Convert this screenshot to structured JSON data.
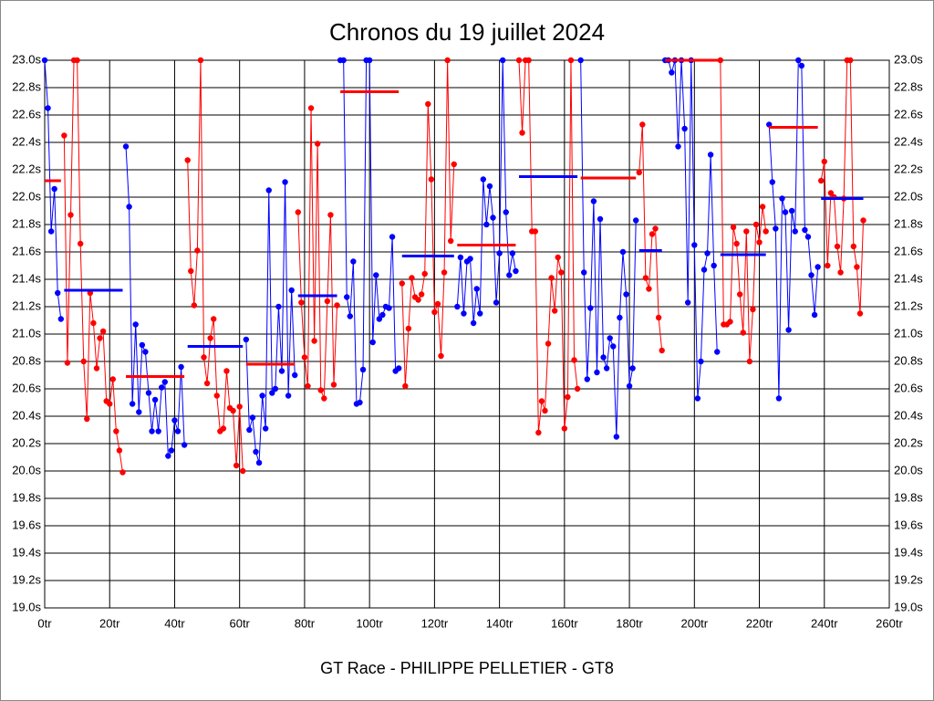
{
  "chart_data": {
    "type": "line",
    "title": "Chronos du 19 juillet 2024",
    "xlabel": "GT Race - PHILIPPE PELLETIER - GT8",
    "grid": true,
    "xlim": [
      0,
      260
    ],
    "ylim": [
      19.0,
      23.0
    ],
    "xticks": [
      {
        "value": 0,
        "label": "0tr"
      },
      {
        "value": 20,
        "label": "20tr"
      },
      {
        "value": 40,
        "label": "40tr"
      },
      {
        "value": 60,
        "label": "60tr"
      },
      {
        "value": 80,
        "label": "80tr"
      },
      {
        "value": 100,
        "label": "100tr"
      },
      {
        "value": 120,
        "label": "120tr"
      },
      {
        "value": 140,
        "label": "140tr"
      },
      {
        "value": 160,
        "label": "160tr"
      },
      {
        "value": 180,
        "label": "180tr"
      },
      {
        "value": 200,
        "label": "200tr"
      },
      {
        "value": 220,
        "label": "220tr"
      },
      {
        "value": 240,
        "label": "240tr"
      },
      {
        "value": 260,
        "label": "260tr"
      }
    ],
    "yticks": [
      {
        "value": 19.0,
        "label": "19.0s"
      },
      {
        "value": 19.2,
        "label": "19.2s"
      },
      {
        "value": 19.4,
        "label": "19.4s"
      },
      {
        "value": 19.6,
        "label": "19.6s"
      },
      {
        "value": 19.8,
        "label": "19.8s"
      },
      {
        "value": 20.0,
        "label": "20.0s"
      },
      {
        "value": 20.2,
        "label": "20.2s"
      },
      {
        "value": 20.4,
        "label": "20.4s"
      },
      {
        "value": 20.6,
        "label": "20.6s"
      },
      {
        "value": 20.8,
        "label": "20.8s"
      },
      {
        "value": 21.0,
        "label": "21.0s"
      },
      {
        "value": 21.2,
        "label": "21.2s"
      },
      {
        "value": 21.4,
        "label": "21.4s"
      },
      {
        "value": 21.6,
        "label": "21.6s"
      },
      {
        "value": 21.8,
        "label": "21.8s"
      },
      {
        "value": 22.0,
        "label": "22.0s"
      },
      {
        "value": 22.2,
        "label": "22.2s"
      },
      {
        "value": 22.4,
        "label": "22.4s"
      },
      {
        "value": 22.6,
        "label": "22.6s"
      },
      {
        "value": 22.8,
        "label": "22.8s"
      },
      {
        "value": 23.0,
        "label": "23.0s"
      }
    ],
    "series": [
      {
        "color": "#0000ff",
        "x": [
          0,
          1,
          2,
          3,
          4,
          5
        ],
        "values": [
          23.0,
          22.65,
          21.75,
          22.06,
          21.3,
          21.11
        ]
      },
      {
        "color": "#ff0000",
        "x": [
          6,
          7,
          8,
          9,
          10,
          11,
          12,
          13,
          14,
          15,
          16,
          17,
          18,
          19,
          20,
          21,
          22,
          23,
          24
        ],
        "values": [
          22.45,
          20.79,
          21.87,
          23.0,
          23.0,
          21.66,
          20.8,
          20.38,
          21.3,
          21.08,
          20.75,
          20.97,
          21.02,
          20.51,
          20.49,
          20.67,
          20.29,
          20.15,
          19.99
        ]
      },
      {
        "color": "#0000ff",
        "x": [
          25,
          26,
          27,
          28,
          29,
          30,
          31,
          32,
          33,
          34,
          35,
          36,
          37,
          38,
          39,
          40,
          41,
          42,
          43
        ],
        "values": [
          22.37,
          21.93,
          20.49,
          21.07,
          20.43,
          20.92,
          20.87,
          20.57,
          20.29,
          20.52,
          20.29,
          20.61,
          20.65,
          20.11,
          20.15,
          20.37,
          20.29,
          20.76,
          20.19
        ]
      },
      {
        "color": "#ff0000",
        "x": [
          44,
          45,
          46,
          47,
          48,
          49,
          50,
          51,
          52,
          53,
          54,
          55,
          56,
          57,
          58,
          59,
          60,
          61
        ],
        "values": [
          22.27,
          21.46,
          21.21,
          21.61,
          23.0,
          20.83,
          20.64,
          20.97,
          21.11,
          20.55,
          20.29,
          20.31,
          20.73,
          20.46,
          20.44,
          20.04,
          20.47,
          20.0
        ]
      },
      {
        "color": "#0000ff",
        "x": [
          62,
          63,
          64,
          65,
          66,
          67,
          68,
          69,
          70,
          71,
          72,
          73,
          74,
          75,
          76,
          77
        ],
        "values": [
          20.96,
          20.3,
          20.39,
          20.14,
          20.06,
          20.55,
          20.31,
          22.05,
          20.57,
          20.6,
          21.2,
          20.73,
          22.11,
          20.55,
          21.32,
          20.7
        ]
      },
      {
        "color": "#ff0000",
        "x": [
          78,
          79,
          80,
          81,
          82,
          83,
          84,
          85,
          86,
          87,
          88,
          89,
          90
        ],
        "values": [
          21.89,
          21.23,
          20.83,
          20.62,
          22.65,
          20.95,
          22.39,
          20.59,
          20.53,
          21.24,
          21.87,
          20.63,
          21.21
        ]
      },
      {
        "color": "#0000ff",
        "x": [
          91,
          92,
          93,
          94,
          95,
          96,
          97,
          98,
          99,
          100,
          101,
          102,
          103,
          104,
          105,
          106,
          107,
          108,
          109
        ],
        "values": [
          23.0,
          23.0,
          21.27,
          21.13,
          21.53,
          20.49,
          20.5,
          20.74,
          23.0,
          23.0,
          20.94,
          21.43,
          21.11,
          21.14,
          21.2,
          21.19,
          21.71,
          20.73,
          20.75
        ]
      },
      {
        "color": "#ff0000",
        "x": [
          110,
          111,
          112,
          113,
          114,
          115,
          116,
          117,
          118,
          119,
          120,
          121,
          122,
          123,
          124,
          125,
          126
        ],
        "values": [
          21.37,
          20.62,
          21.04,
          21.41,
          21.27,
          21.25,
          21.29,
          21.44,
          22.68,
          22.13,
          21.16,
          21.22,
          20.84,
          21.45,
          23.0,
          21.68,
          22.24
        ]
      },
      {
        "color": "#0000ff",
        "x": [
          127,
          128,
          129,
          130,
          131,
          132,
          133,
          134,
          135,
          136,
          137,
          138,
          139,
          140,
          141,
          142,
          143,
          144,
          145
        ],
        "values": [
          21.2,
          21.56,
          21.15,
          21.53,
          21.55,
          21.08,
          21.33,
          21.15,
          22.13,
          21.8,
          22.08,
          21.85,
          21.23,
          21.59,
          23.0,
          21.89,
          21.43,
          21.59,
          21.46
        ]
      },
      {
        "color": "#ff0000",
        "x": [
          146,
          147,
          148,
          149,
          150,
          151,
          152,
          153,
          154,
          155,
          156,
          157,
          158,
          159,
          160,
          161,
          162,
          163,
          164
        ],
        "values": [
          23.0,
          22.47,
          23.0,
          23.0,
          21.75,
          21.75,
          20.28,
          20.51,
          20.44,
          20.93,
          21.41,
          21.17,
          21.56,
          21.45,
          20.31,
          20.54,
          23.0,
          20.81,
          20.6
        ]
      },
      {
        "color": "#0000ff",
        "x": [
          165,
          166,
          167,
          168,
          169,
          170,
          171,
          172,
          173,
          174,
          175,
          176,
          177,
          178,
          179,
          180,
          181,
          182
        ],
        "values": [
          23.0,
          21.45,
          20.67,
          21.19,
          21.97,
          20.72,
          21.84,
          20.83,
          20.75,
          20.97,
          20.91,
          20.25,
          21.12,
          21.6,
          21.29,
          20.62,
          20.75,
          21.83
        ]
      },
      {
        "color": "#ff0000",
        "x": [
          183,
          184,
          185,
          186,
          187,
          188,
          189,
          190
        ],
        "values": [
          22.18,
          22.53,
          21.41,
          21.33,
          21.73,
          21.77,
          21.12,
          20.88
        ]
      },
      {
        "color": "#0000ff",
        "x": [
          191,
          192,
          193,
          194,
          195,
          196,
          197,
          198,
          199,
          200,
          201,
          202,
          203,
          204,
          205,
          206,
          207
        ],
        "values": [
          23.0,
          23.0,
          22.91,
          23.0,
          22.37,
          23.0,
          22.5,
          21.23,
          23.0,
          21.65,
          20.53,
          20.8,
          21.47,
          21.59,
          22.31,
          21.5,
          20.87
        ]
      },
      {
        "color": "#ff0000",
        "x": [
          208,
          209,
          210,
          211,
          212,
          213,
          214,
          215,
          216,
          217,
          218,
          219,
          220,
          221,
          222
        ],
        "values": [
          23.0,
          21.07,
          21.07,
          21.09,
          21.78,
          21.66,
          21.29,
          21.01,
          21.75,
          20.8,
          21.18,
          21.8,
          21.67,
          21.93,
          21.75
        ]
      },
      {
        "color": "#0000ff",
        "x": [
          223,
          224,
          225,
          226,
          227,
          228,
          229,
          230,
          231,
          232,
          233,
          234,
          235,
          236,
          237,
          238
        ],
        "values": [
          22.53,
          22.11,
          21.77,
          20.53,
          21.99,
          21.89,
          21.03,
          21.9,
          21.75,
          23.0,
          22.96,
          21.76,
          21.71,
          21.43,
          21.14,
          21.49
        ]
      },
      {
        "color": "#ff0000",
        "x": [
          239,
          240,
          241,
          242,
          243,
          244,
          245,
          246,
          247,
          248,
          249,
          250,
          251,
          252
        ],
        "values": [
          22.12,
          22.26,
          21.5,
          22.03,
          22.0,
          21.64,
          21.45,
          21.99,
          23.0,
          23.0,
          21.64,
          21.49,
          21.15,
          21.83
        ]
      }
    ],
    "averages": [
      {
        "color": "#ff0000",
        "x": [
          0,
          5
        ],
        "value": 22.12
      },
      {
        "color": "#0000ff",
        "x": [
          6,
          24
        ],
        "value": 21.32
      },
      {
        "color": "#ff0000",
        "x": [
          25,
          43
        ],
        "value": 20.69
      },
      {
        "color": "#0000ff",
        "x": [
          44,
          61
        ],
        "value": 20.91
      },
      {
        "color": "#ff0000",
        "x": [
          62,
          77
        ],
        "value": 20.78
      },
      {
        "color": "#0000ff",
        "x": [
          78,
          90
        ],
        "value": 21.28
      },
      {
        "color": "#ff0000",
        "x": [
          91,
          109
        ],
        "value": 22.77
      },
      {
        "color": "#0000ff",
        "x": [
          110,
          126
        ],
        "value": 21.57
      },
      {
        "color": "#ff0000",
        "x": [
          127,
          145
        ],
        "value": 21.65
      },
      {
        "color": "#0000ff",
        "x": [
          146,
          164
        ],
        "value": 22.15
      },
      {
        "color": "#ff0000",
        "x": [
          165,
          182
        ],
        "value": 22.14
      },
      {
        "color": "#0000ff",
        "x": [
          183,
          190
        ],
        "value": 21.61
      },
      {
        "color": "#ff0000",
        "x": [
          191,
          208
        ],
        "value": 23.0
      },
      {
        "color": "#0000ff",
        "x": [
          208,
          222
        ],
        "value": 21.58
      },
      {
        "color": "#ff0000",
        "x": [
          223,
          238
        ],
        "value": 22.51
      },
      {
        "color": "#0000ff",
        "x": [
          239,
          252
        ],
        "value": 21.99
      }
    ]
  }
}
